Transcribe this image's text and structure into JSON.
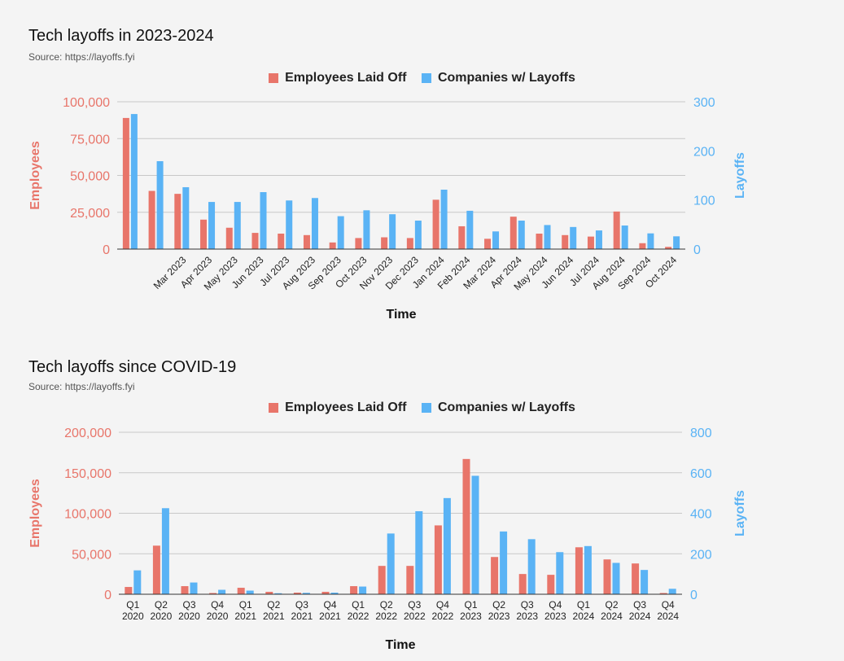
{
  "colors": {
    "employees": "#e8756a",
    "companies": "#5ab3f5",
    "grid": "#c8c8c8",
    "axis": "#333333"
  },
  "chart_data": [
    {
      "type": "bar",
      "title": "Tech layoffs in 2023-2024",
      "source": "Source: https://layoffs.fyi",
      "xlabel": "Time",
      "ylabel_left": "Employees",
      "ylabel_right": "Layoffs",
      "categories": [
        "",
        "",
        "Mar 2023",
        "Apr 2023",
        "May 2023",
        "Jun 2023",
        "Jul 2023",
        "Aug 2023",
        "Sep 2023",
        "Oct 2023",
        "Nov 2023",
        "Dec 2023",
        "Jan 2024",
        "Feb 2024",
        "Mar 2024",
        "Apr 2024",
        "May 2024",
        "Jun 2024",
        "Jul 2024",
        "Aug 2024",
        "Sep 2024",
        "Oct 2024"
      ],
      "series": [
        {
          "name": "Employees Laid Off",
          "axis": "left",
          "values": [
            89000,
            39500,
            37500,
            20000,
            14500,
            11000,
            10500,
            9500,
            4500,
            7500,
            8000,
            7500,
            33500,
            15500,
            7000,
            22000,
            10500,
            9500,
            8500,
            25500,
            4000,
            1500
          ]
        },
        {
          "name": "Companies w/ Layoffs",
          "axis": "right",
          "values": [
            275,
            179,
            126,
            96,
            96,
            116,
            99,
            104,
            67,
            79,
            71,
            58,
            121,
            78,
            36,
            58,
            49,
            45,
            38,
            48,
            32,
            26
          ]
        }
      ],
      "ylim_left": [
        0,
        100000
      ],
      "ylim_right": [
        0,
        300
      ],
      "yticks_left": [
        "0",
        "25,000",
        "50,000",
        "75,000",
        "100,000"
      ],
      "yticks_right": [
        "0",
        "100",
        "200",
        "300"
      ],
      "legend": "top-center",
      "grid": true,
      "x_label_rotation": "diagonal"
    },
    {
      "type": "bar",
      "title": "Tech layoffs since COVID-19",
      "source": "Source: https://layoffs.fyi",
      "xlabel": "Time",
      "ylabel_left": "Employees",
      "ylabel_right": "Layoffs",
      "categories": [
        [
          "Q1",
          "2020"
        ],
        [
          "Q2",
          "2020"
        ],
        [
          "Q3",
          "2020"
        ],
        [
          "Q4",
          "2020"
        ],
        [
          "Q1",
          "2021"
        ],
        [
          "Q2",
          "2021"
        ],
        [
          "Q3",
          "2021"
        ],
        [
          "Q4",
          "2021"
        ],
        [
          "Q1",
          "2022"
        ],
        [
          "Q2",
          "2022"
        ],
        [
          "Q3",
          "2022"
        ],
        [
          "Q4",
          "2022"
        ],
        [
          "Q1",
          "2023"
        ],
        [
          "Q2",
          "2023"
        ],
        [
          "Q3",
          "2023"
        ],
        [
          "Q4",
          "2023"
        ],
        [
          "Q1",
          "2024"
        ],
        [
          "Q2",
          "2024"
        ],
        [
          "Q3",
          "2024"
        ],
        [
          "Q4",
          "2024"
        ]
      ],
      "series": [
        {
          "name": "Employees Laid Off",
          "axis": "left",
          "values": [
            9000,
            60000,
            10000,
            1500,
            8000,
            3000,
            2000,
            3000,
            10000,
            35000,
            35000,
            85000,
            167000,
            46000,
            25000,
            24000,
            58000,
            43000,
            38000,
            1500
          ]
        },
        {
          "name": "Companies w/ Layoffs",
          "axis": "right",
          "values": [
            118,
            425,
            58,
            22,
            18,
            5,
            7,
            8,
            38,
            300,
            410,
            475,
            585,
            310,
            272,
            208,
            238,
            155,
            120,
            27
          ]
        }
      ],
      "ylim_left": [
        0,
        200000
      ],
      "ylim_right": [
        0,
        800
      ],
      "yticks_left": [
        "0",
        "50,000",
        "100,000",
        "150,000",
        "200,000"
      ],
      "yticks_right": [
        "0",
        "200",
        "400",
        "600",
        "800"
      ],
      "legend": "top-center",
      "grid": true,
      "x_label_rotation": "none"
    }
  ]
}
